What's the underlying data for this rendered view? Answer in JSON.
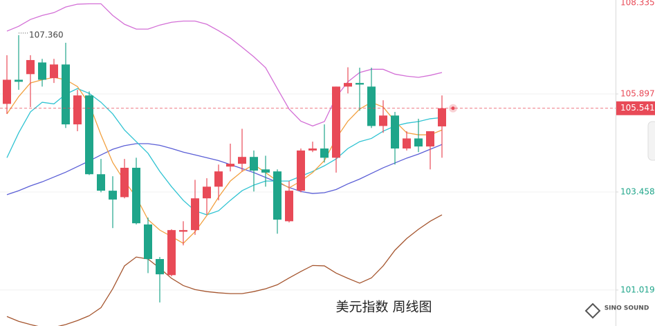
{
  "chart_data": {
    "type": "candlestick",
    "title": "美元指数 周线图",
    "watermark": "SINO SOUND",
    "up_color": "#e84a57",
    "down_color": "#1fa58a",
    "open": [
      105.65,
      106.25,
      106.39,
      106.68,
      106.29,
      106.63,
      105.14,
      105.86,
      103.9,
      103.49,
      103.33,
      104.06,
      102.65,
      101.79,
      101.39,
      102.47,
      102.51,
      103.3,
      103.59,
      104.09,
      104.16,
      104.33,
      104.02,
      103.97,
      102.73,
      103.49,
      104.49,
      104.54,
      104.31,
      106.08,
      106.17,
      106.08,
      105.1,
      105.36,
      104.54,
      104.79,
      104.59,
      105.09
    ],
    "high": [
      106.86,
      107.36,
      106.86,
      106.77,
      106.77,
      107.17,
      106.0,
      105.96,
      104.28,
      103.85,
      104.28,
      104.31,
      102.82,
      101.84,
      102.53,
      102.73,
      103.76,
      103.8,
      104.14,
      104.66,
      105.03,
      104.49,
      104.36,
      104.02,
      103.73,
      104.54,
      104.71,
      105.14,
      106.08,
      106.56,
      106.55,
      106.55,
      105.74,
      105.45,
      104.97,
      105.28,
      104.97,
      105.86
    ],
    "low": [
      105.4,
      106.0,
      105.57,
      106.08,
      106.17,
      105.05,
      104.97,
      103.88,
      103.45,
      102.56,
      103.3,
      102.65,
      101.44,
      100.71,
      101.36,
      102.13,
      102.39,
      102.9,
      103.25,
      103.97,
      103.97,
      103.47,
      103.59,
      102.42,
      102.7,
      103.45,
      104.45,
      104.19,
      103.94,
      105.91,
      105.48,
      105.05,
      104.93,
      104.14,
      104.49,
      104.45,
      104.02,
      104.31
    ],
    "close": [
      106.25,
      106.2,
      106.74,
      106.25,
      106.63,
      105.14,
      105.86,
      103.9,
      103.49,
      103.27,
      104.06,
      102.68,
      101.79,
      101.41,
      102.51,
      102.51,
      103.3,
      103.59,
      103.97,
      104.16,
      104.33,
      103.99,
      103.94,
      102.77,
      103.49,
      104.49,
      104.54,
      104.31,
      106.08,
      106.17,
      106.13,
      105.1,
      105.36,
      104.54,
      104.79,
      104.59,
      104.97,
      105.541
    ],
    "lines": [
      {
        "color": "#d36fd6",
        "values": [
          107.46,
          107.58,
          107.75,
          107.85,
          107.92,
          108.06,
          108.13,
          108.14,
          108.14,
          107.85,
          107.63,
          107.51,
          107.51,
          107.61,
          107.68,
          107.71,
          107.71,
          107.63,
          107.47,
          107.29,
          107.06,
          106.82,
          106.55,
          106.03,
          105.52,
          105.22,
          105.1,
          105.21,
          105.82,
          106.2,
          106.43,
          106.51,
          106.51,
          106.39,
          106.34,
          106.31,
          106.36,
          106.43
        ]
      },
      {
        "color": "#a5552e",
        "values": [
          100.36,
          100.24,
          100.16,
          100.09,
          100.09,
          100.16,
          100.26,
          100.38,
          100.58,
          101.05,
          101.62,
          101.84,
          101.79,
          101.56,
          101.31,
          101.13,
          101.03,
          100.98,
          100.95,
          100.93,
          100.93,
          100.98,
          101.05,
          101.15,
          101.32,
          101.48,
          101.63,
          101.62,
          101.44,
          101.31,
          101.19,
          101.32,
          101.62,
          102.01,
          102.3,
          102.53,
          102.73,
          102.89
        ]
      },
      {
        "color": "#5a5ed6",
        "values": [
          103.39,
          103.49,
          103.61,
          103.71,
          103.83,
          103.95,
          104.09,
          104.23,
          104.38,
          104.52,
          104.61,
          104.66,
          104.66,
          104.62,
          104.54,
          104.45,
          104.38,
          104.31,
          104.24,
          104.14,
          104.04,
          103.94,
          103.82,
          103.7,
          103.57,
          103.47,
          103.42,
          103.44,
          103.52,
          103.66,
          103.78,
          103.92,
          104.06,
          104.18,
          104.3,
          104.4,
          104.52,
          104.64
        ]
      },
      {
        "color": "#2fc3d2",
        "values": [
          104.31,
          104.93,
          105.45,
          105.69,
          105.65,
          105.89,
          106.03,
          105.91,
          105.69,
          105.4,
          105.0,
          104.71,
          104.42,
          103.97,
          103.59,
          103.25,
          102.99,
          102.89,
          102.99,
          103.25,
          103.49,
          103.63,
          103.73,
          103.73,
          103.73,
          103.85,
          103.97,
          104.11,
          104.28,
          104.54,
          104.71,
          104.79,
          104.97,
          105.1,
          105.17,
          105.21,
          105.28,
          105.31
        ]
      },
      {
        "color": "#f2a03f",
        "values": [
          105.4,
          105.83,
          106.17,
          106.25,
          106.31,
          106.25,
          106.08,
          105.65,
          104.88,
          104.19,
          103.73,
          103.33,
          102.77,
          102.51,
          102.35,
          102.18,
          102.47,
          102.87,
          103.33,
          103.73,
          103.97,
          104.14,
          103.94,
          103.73,
          103.56,
          103.73,
          103.94,
          104.24,
          104.79,
          105.22,
          105.52,
          105.69,
          105.57,
          105.22,
          104.93,
          104.88,
          104.88,
          105.0
        ]
      }
    ],
    "high_annotation": {
      "value": 107.36,
      "label": "107.360"
    },
    "last_price": 105.541,
    "last_price_color": "#e84a57",
    "ylim": [
      100.124,
      108.234
    ],
    "yticks": [
      101.019,
      103.458,
      105.897,
      108.335
    ],
    "ytick_colors": [
      "#1fa58a",
      "#1fa58a",
      "#e84a57",
      "#e84a57"
    ],
    "grid": true
  }
}
